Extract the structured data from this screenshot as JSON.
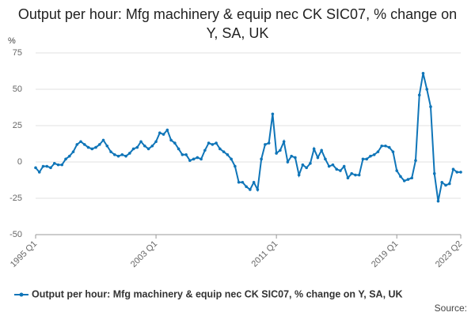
{
  "chart_data": {
    "type": "line",
    "title": "Output per hour: Mfg machinery & equip nec CK SIC07, % change on Y, SA, UK",
    "y_label": "%",
    "source": "Source:",
    "categories": [
      "1995 Q1",
      null,
      null,
      null,
      null,
      null,
      null,
      null,
      null,
      null,
      null,
      null,
      null,
      null,
      null,
      null,
      null,
      null,
      null,
      null,
      null,
      null,
      null,
      null,
      null,
      null,
      null,
      null,
      null,
      null,
      null,
      null,
      "2003 Q1",
      null,
      null,
      null,
      null,
      null,
      null,
      null,
      null,
      null,
      null,
      null,
      null,
      null,
      null,
      null,
      null,
      null,
      null,
      null,
      null,
      null,
      null,
      null,
      null,
      null,
      null,
      null,
      null,
      null,
      null,
      null,
      "2011 Q1",
      null,
      null,
      null,
      null,
      null,
      null,
      null,
      null,
      null,
      null,
      null,
      null,
      null,
      null,
      null,
      null,
      null,
      null,
      null,
      null,
      null,
      null,
      null,
      null,
      null,
      null,
      null,
      null,
      null,
      null,
      null,
      "2019 Q1",
      null,
      null,
      null,
      null,
      null,
      null,
      null,
      null,
      null,
      null,
      null,
      null,
      null,
      null,
      null,
      null,
      "2023 Q2"
    ],
    "series": [
      {
        "name": "Output per hour: Mfg machinery & equip nec CK SIC07, % change on Y, SA, UK",
        "color": "#0f75b8",
        "values": [
          -4,
          -7,
          -3,
          -3,
          -4,
          -1,
          -2,
          -2,
          2,
          4,
          7,
          12,
          14,
          12,
          10,
          9,
          10,
          12,
          15,
          11,
          7,
          5,
          4,
          5,
          4,
          6,
          9,
          10,
          14,
          11,
          9,
          11,
          14,
          20,
          19,
          22,
          15,
          13,
          9,
          5,
          5,
          1,
          2,
          3,
          2,
          8,
          13,
          12,
          13,
          9,
          7,
          5,
          2,
          -3,
          -14,
          -14,
          -17,
          -19,
          -14,
          -19,
          2,
          12,
          13,
          33,
          6,
          8,
          14,
          0,
          4,
          3,
          -9,
          -2,
          -4,
          -1,
          9,
          3,
          8,
          2,
          -3,
          -2,
          -5,
          -6,
          -3,
          -11,
          -8,
          -9,
          -9,
          2,
          2,
          4,
          5,
          7,
          11,
          11,
          10,
          7,
          -6,
          -10,
          -13,
          -12,
          -11,
          1,
          46,
          61,
          50,
          38,
          -8,
          -27,
          -14,
          -16,
          -15,
          -5,
          -7,
          -7
        ]
      }
    ],
    "ylim": [
      -50,
      75
    ],
    "yticks": [
      -50,
      -25,
      0,
      25,
      50,
      75
    ],
    "grid": true
  }
}
